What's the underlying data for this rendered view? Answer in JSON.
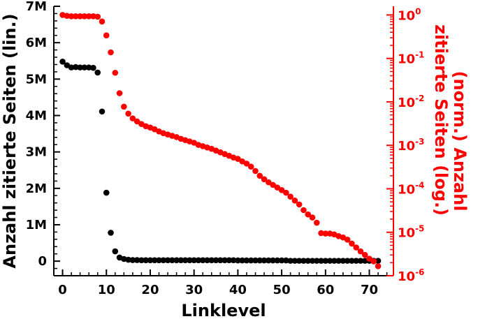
{
  "chart_data": {
    "type": "scatter",
    "xlabel": "Linklevel",
    "ylabel_left": "Anzahl zitierte Seiten (lin.)",
    "ylabel_right": "(norm.) Anzahl zitierte Seiten (log.)",
    "xlim": [
      -2,
      75.5
    ],
    "ylim_left": [
      -400000,
      7000000
    ],
    "ylim_right_log10": [
      -6,
      0.2
    ],
    "x_ticks": [
      0,
      10,
      20,
      30,
      40,
      50,
      60,
      70
    ],
    "y_left_ticks": [
      {
        "value": 0,
        "label": "0"
      },
      {
        "value": 1000000,
        "label": "1M"
      },
      {
        "value": 2000000,
        "label": "2M"
      },
      {
        "value": 3000000,
        "label": "3M"
      },
      {
        "value": 4000000,
        "label": "4M"
      },
      {
        "value": 5000000,
        "label": "5M"
      },
      {
        "value": 6000000,
        "label": "6M"
      },
      {
        "value": 7000000,
        "label": "7M"
      }
    ],
    "y_right_ticks": [
      {
        "exp": 0,
        "base": "10",
        "sup": "0"
      },
      {
        "exp": -1,
        "base": "10",
        "sup": "-1"
      },
      {
        "exp": -2,
        "base": "10",
        "sup": "-2"
      },
      {
        "exp": -3,
        "base": "10",
        "sup": "-3"
      },
      {
        "exp": -4,
        "base": "10",
        "sup": "-4"
      },
      {
        "exp": -5,
        "base": "10",
        "sup": "-5"
      },
      {
        "exp": -6,
        "base": "10",
        "sup": "-6"
      }
    ],
    "colors": {
      "left": "#000000",
      "right": "#ff0000",
      "axis": "#000000"
    },
    "series": [
      {
        "axis": "left",
        "x": [
          0,
          1,
          2,
          3,
          4,
          5,
          6,
          7,
          8,
          9,
          10,
          11,
          12,
          13,
          14,
          15,
          16,
          17,
          18,
          19,
          20,
          21,
          22,
          23,
          24,
          25,
          26,
          27,
          28,
          29,
          30,
          31,
          32,
          33,
          34,
          35,
          36,
          37,
          38,
          39,
          40,
          41,
          42,
          43,
          44,
          45,
          46,
          47,
          48,
          49,
          50,
          51,
          52,
          53,
          54,
          55,
          56,
          57,
          58,
          59,
          60,
          61,
          62,
          63,
          64,
          65,
          66,
          67,
          68,
          69,
          70,
          71,
          72
        ],
        "values": [
          5480000,
          5380000,
          5320000,
          5330000,
          5320000,
          5320000,
          5320000,
          5310000,
          5180000,
          4110000,
          1880000,
          780000,
          270000,
          100000,
          60000,
          40000,
          30000,
          30000,
          25000,
          25000,
          25000,
          25000,
          25000,
          25000,
          25000,
          25000,
          25000,
          25000,
          25000,
          25000,
          25000,
          25000,
          25000,
          25000,
          25000,
          25000,
          25000,
          25000,
          25000,
          25000,
          20000,
          20000,
          20000,
          20000,
          20000,
          20000,
          20000,
          20000,
          20000,
          20000,
          20000,
          20000,
          10000,
          10000,
          10000,
          10000,
          10000,
          10000,
          10000,
          10000,
          10000,
          10000,
          10000,
          10000,
          10000,
          10000,
          10000,
          10000,
          10000,
          10000,
          10000,
          10000,
          10000
        ]
      },
      {
        "axis": "right",
        "x": [
          0,
          1,
          2,
          3,
          4,
          5,
          6,
          7,
          8,
          9,
          10,
          11,
          12,
          13,
          14,
          15,
          16,
          17,
          18,
          19,
          20,
          21,
          22,
          23,
          24,
          25,
          26,
          27,
          28,
          29,
          30,
          31,
          32,
          33,
          34,
          35,
          36,
          37,
          38,
          39,
          40,
          41,
          42,
          43,
          44,
          45,
          46,
          47,
          48,
          49,
          50,
          51,
          52,
          53,
          54,
          55,
          56,
          57,
          58,
          59,
          60,
          61,
          62,
          63,
          64,
          65,
          66,
          67,
          68,
          69,
          70,
          71,
          72
        ],
        "log10_values": [
          0,
          -0.02,
          -0.03,
          -0.03,
          -0.03,
          -0.03,
          -0.03,
          -0.03,
          -0.04,
          -0.15,
          -0.47,
          -0.86,
          -1.33,
          -1.8,
          -2.11,
          -2.27,
          -2.38,
          -2.45,
          -2.51,
          -2.56,
          -2.59,
          -2.63,
          -2.68,
          -2.72,
          -2.75,
          -2.78,
          -2.81,
          -2.85,
          -2.88,
          -2.91,
          -2.94,
          -2.99,
          -3.02,
          -3.05,
          -3.08,
          -3.12,
          -3.16,
          -3.2,
          -3.24,
          -3.28,
          -3.31,
          -3.37,
          -3.42,
          -3.49,
          -3.59,
          -3.7,
          -3.78,
          -3.85,
          -3.91,
          -3.97,
          -4.03,
          -4.09,
          -4.18,
          -4.27,
          -4.36,
          -4.49,
          -4.59,
          -4.66,
          -4.78,
          -5.02,
          -5.03,
          -5.03,
          -5.05,
          -5.09,
          -5.12,
          -5.17,
          -5.26,
          -5.35,
          -5.44,
          -5.52,
          -5.61,
          -5.67,
          -5.78
        ]
      }
    ]
  }
}
